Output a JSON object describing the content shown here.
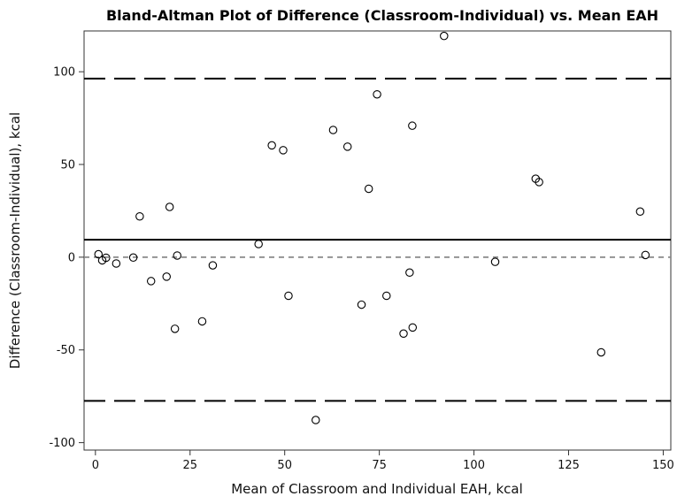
{
  "chart_data": {
    "type": "scatter",
    "title": "Bland-Altman Plot of Difference (Classroom-Individual) vs. Mean EAH",
    "xlabel": "Mean of Classroom and Individual EAH, kcal",
    "ylabel": "Difference (Classroom-Individual), kcal",
    "xlim": [
      -3,
      152
    ],
    "ylim": [
      -104,
      122
    ],
    "xticks": [
      0,
      25,
      50,
      75,
      100,
      125,
      150
    ],
    "yticks": [
      -100,
      -50,
      0,
      50,
      100
    ],
    "grid": false,
    "reference_lines": {
      "mean_difference": 9.4,
      "upper_limit": 96.3,
      "lower_limit": -77.5,
      "zero": 0
    },
    "points": [
      {
        "x": 0.8,
        "y": 1.6
      },
      {
        "x": 1.8,
        "y": -1.7
      },
      {
        "x": 2.8,
        "y": -0.3
      },
      {
        "x": 5.5,
        "y": -3.4
      },
      {
        "x": 10.0,
        "y": -0.2
      },
      {
        "x": 11.7,
        "y": 22.0
      },
      {
        "x": 14.7,
        "y": -12.9
      },
      {
        "x": 18.8,
        "y": -10.5
      },
      {
        "x": 19.6,
        "y": 27.1
      },
      {
        "x": 21.0,
        "y": -38.6
      },
      {
        "x": 21.6,
        "y": 0.9
      },
      {
        "x": 28.2,
        "y": -34.6
      },
      {
        "x": 31.0,
        "y": -4.4
      },
      {
        "x": 43.1,
        "y": 7.1
      },
      {
        "x": 46.6,
        "y": 60.3
      },
      {
        "x": 49.6,
        "y": 57.7
      },
      {
        "x": 51.0,
        "y": -20.8
      },
      {
        "x": 58.2,
        "y": -87.8
      },
      {
        "x": 62.8,
        "y": 68.6
      },
      {
        "x": 66.6,
        "y": 59.6
      },
      {
        "x": 70.3,
        "y": -25.6
      },
      {
        "x": 72.2,
        "y": 36.9
      },
      {
        "x": 74.4,
        "y": 87.8
      },
      {
        "x": 76.9,
        "y": -20.8
      },
      {
        "x": 81.4,
        "y": -41.2
      },
      {
        "x": 83.0,
        "y": -8.3
      },
      {
        "x": 83.7,
        "y": 70.9
      },
      {
        "x": 83.8,
        "y": -37.9
      },
      {
        "x": 92.1,
        "y": 119.3
      },
      {
        "x": 105.6,
        "y": -2.5
      },
      {
        "x": 116.3,
        "y": 42.3
      },
      {
        "x": 117.2,
        "y": 40.5
      },
      {
        "x": 133.6,
        "y": -51.3
      },
      {
        "x": 143.9,
        "y": 24.6
      },
      {
        "x": 145.3,
        "y": 1.2
      }
    ]
  }
}
